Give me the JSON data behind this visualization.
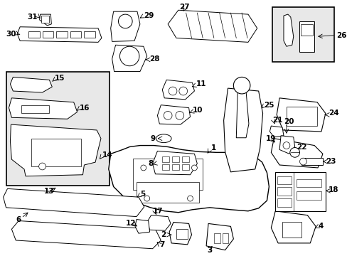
{
  "bg_color": "#ffffff",
  "line_color": "#000000",
  "label_color": "#000000",
  "fig_w": 4.89,
  "fig_h": 3.6,
  "dpi": 100
}
